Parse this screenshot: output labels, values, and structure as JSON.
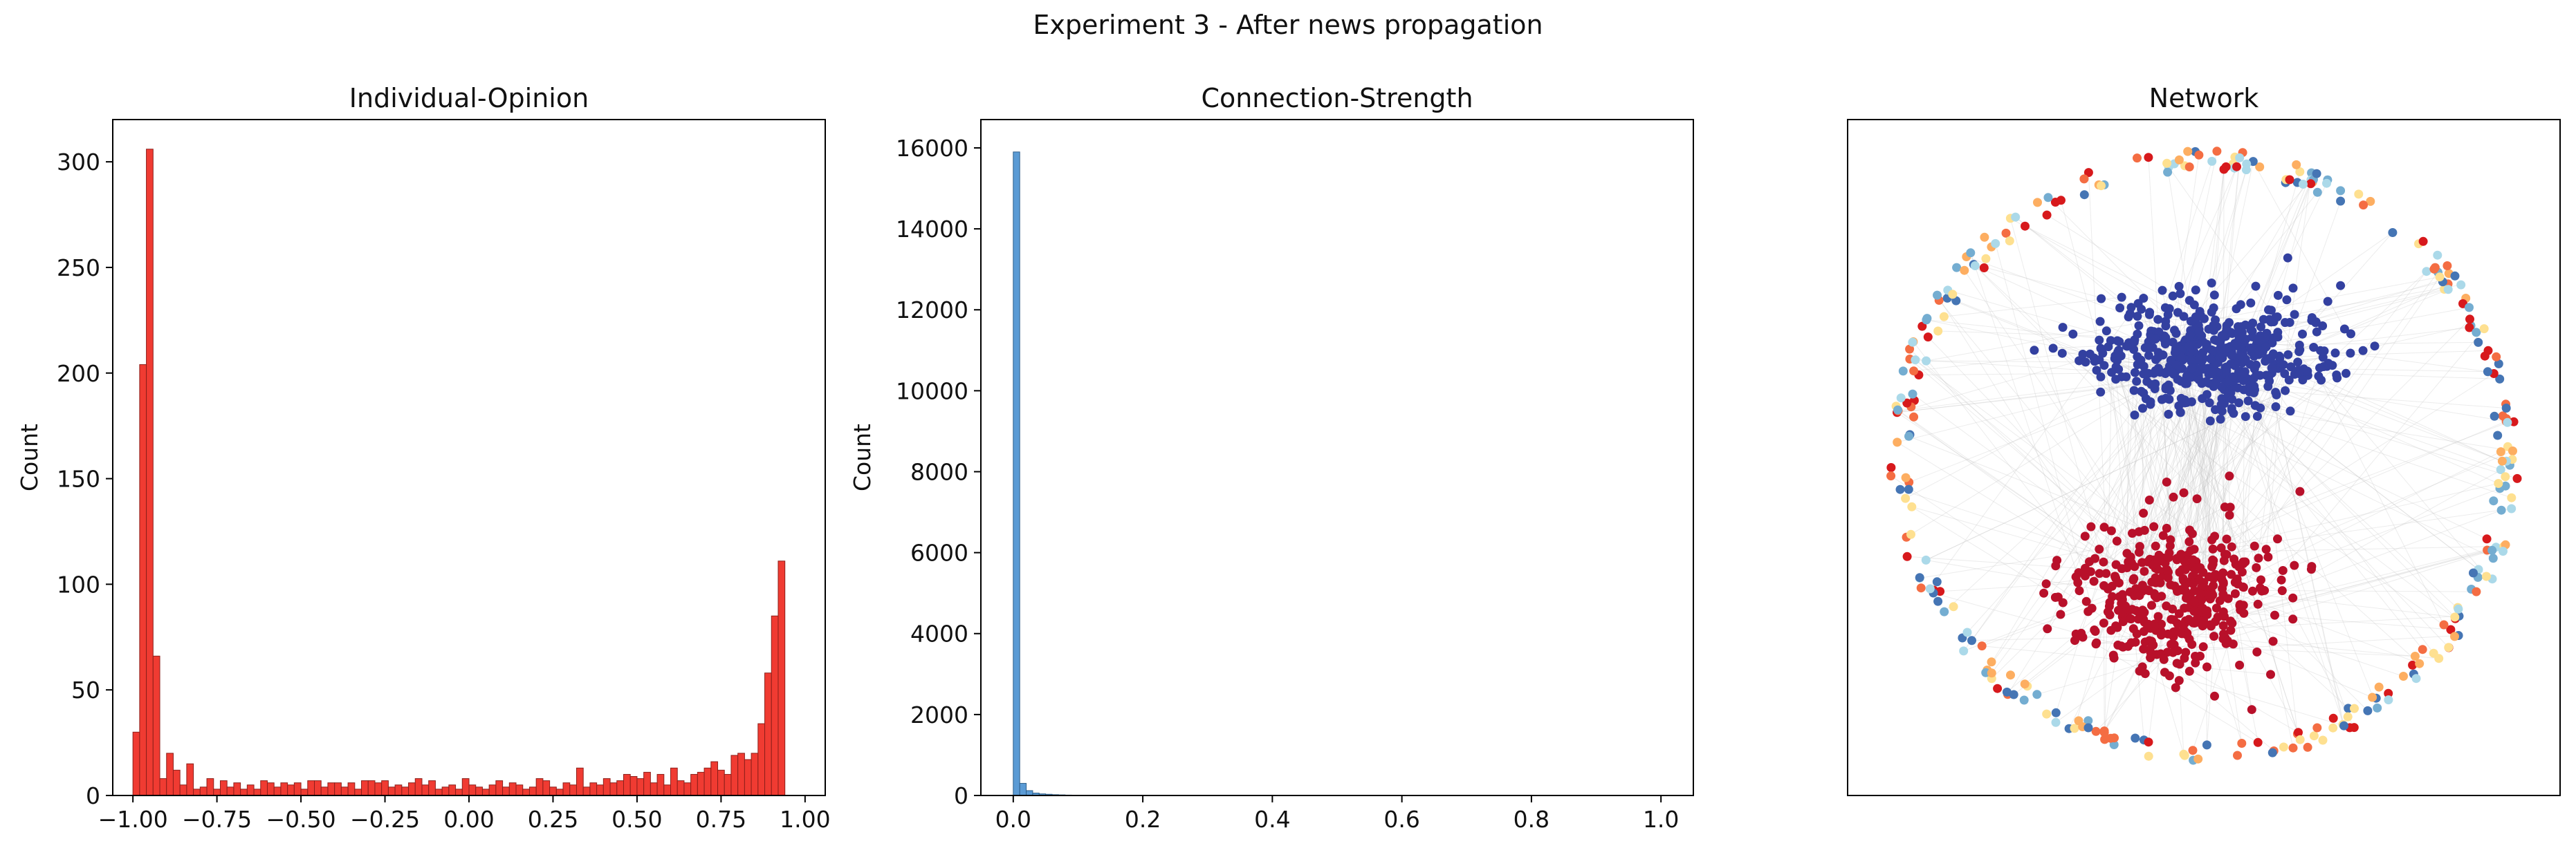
{
  "figure": {
    "title": "Experiment 3 - After news propagation"
  },
  "colors": {
    "opinion_bar": "#f03b32",
    "opinion_edge": "#8c1f1a",
    "strength_bar": "#5b9bd5",
    "strength_edge": "#2f5f8a",
    "edge": "#c8c8c8",
    "cluster_blue": "#3340a0",
    "cluster_red": "#b8102a",
    "ring_palette": [
      "#d7191c",
      "#f46d43",
      "#fdae61",
      "#fee090",
      "#abd9e9",
      "#74add1",
      "#4575b4"
    ]
  },
  "chart_data": [
    {
      "type": "bar",
      "title": "Individual-Opinion",
      "xlabel": "",
      "ylabel": "Count",
      "xlim": [
        -1.06,
        1.06
      ],
      "ylim": [
        0,
        320
      ],
      "xticks": [
        "-1.00",
        "-0.75",
        "-0.50",
        "-0.25",
        "0.00",
        "0.25",
        "0.50",
        "0.75",
        "1.00"
      ],
      "xtick_values": [
        -1.0,
        -0.75,
        -0.5,
        -0.25,
        0.0,
        0.25,
        0.5,
        0.75,
        1.0
      ],
      "yticks": [
        "0",
        "50",
        "100",
        "150",
        "200",
        "250",
        "300"
      ],
      "ytick_values": [
        0,
        50,
        100,
        150,
        200,
        250,
        300
      ],
      "bin_start": -1.0,
      "bin_width": 0.02,
      "values": [
        30,
        204,
        306,
        66,
        8,
        20,
        12,
        5,
        15,
        3,
        4,
        8,
        3,
        7,
        4,
        6,
        3,
        5,
        3,
        7,
        6,
        4,
        6,
        5,
        6,
        3,
        7,
        7,
        4,
        6,
        6,
        4,
        6,
        3,
        7,
        7,
        6,
        7,
        4,
        5,
        4,
        6,
        8,
        5,
        7,
        3,
        4,
        5,
        3,
        8,
        5,
        4,
        3,
        5,
        7,
        4,
        6,
        5,
        3,
        4,
        8,
        7,
        4,
        3,
        6,
        5,
        13,
        4,
        6,
        5,
        8,
        6,
        7,
        10,
        9,
        8,
        11,
        6,
        10,
        5,
        13,
        7,
        6,
        10,
        11,
        13,
        16,
        12,
        10,
        19,
        20,
        17,
        20,
        34,
        58,
        85,
        111
      ],
      "grid": false
    },
    {
      "type": "bar",
      "title": "Connection-Strength",
      "xlabel": "",
      "ylabel": "Count",
      "xlim": [
        -0.05,
        1.05
      ],
      "ylim": [
        0,
        16700
      ],
      "xticks": [
        "0.0",
        "0.2",
        "0.4",
        "0.6",
        "0.8",
        "1.0"
      ],
      "xtick_values": [
        0.0,
        0.2,
        0.4,
        0.6,
        0.8,
        1.0
      ],
      "yticks": [
        "0",
        "2000",
        "4000",
        "6000",
        "8000",
        "10000",
        "12000",
        "14000",
        "16000"
      ],
      "ytick_values": [
        0,
        2000,
        4000,
        6000,
        8000,
        10000,
        12000,
        14000,
        16000
      ],
      "bin_start": 0.0,
      "bin_width": 0.01,
      "values": [
        15900,
        300,
        120,
        60,
        40,
        30,
        20,
        15,
        10,
        8,
        6,
        5,
        4,
        3,
        3,
        2,
        2,
        1,
        1,
        1
      ],
      "grid": false
    },
    {
      "type": "network",
      "title": "Network",
      "axes": "hidden",
      "nodes": {
        "opinion_cluster_negative": "blue",
        "opinion_cluster_positive": "red",
        "outer_ring": "mixed"
      }
    }
  ]
}
